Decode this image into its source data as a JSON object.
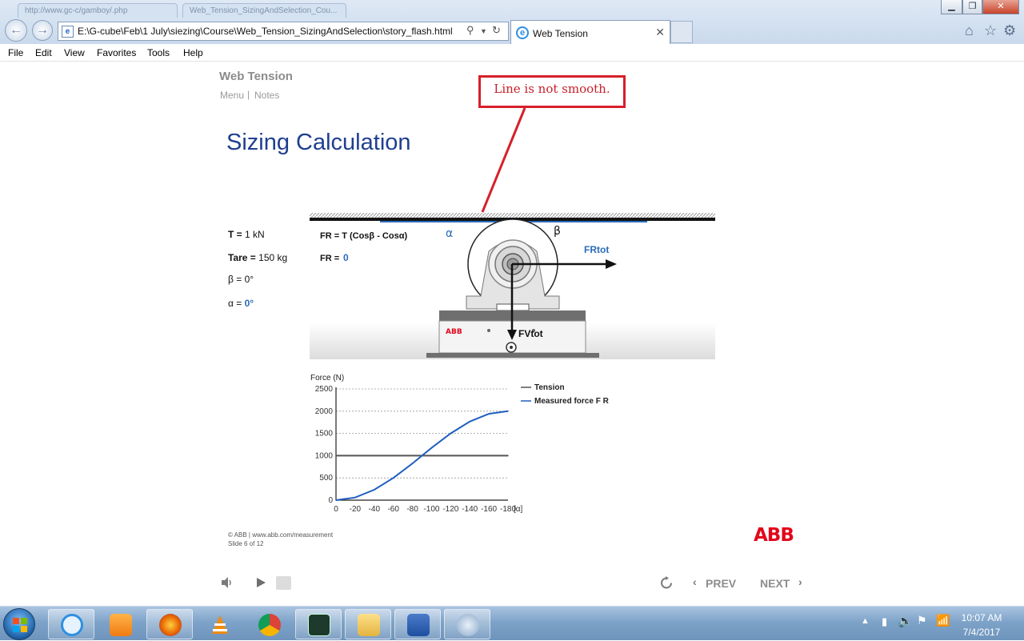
{
  "browser": {
    "background_tabs": [
      "http://www.gc-c/gamboy/.php",
      "Web_Tension_SizingAndSelection_Cou..."
    ],
    "address": "E:\\G-cube\\Feb\\1 July\\siezing\\Course\\Web_Tension_SizingAndSelection\\story_flash.html",
    "active_tab": "Web Tension",
    "menu": [
      "File",
      "Edit",
      "View",
      "Favorites",
      "Tools",
      "Help"
    ]
  },
  "course": {
    "title": "Web Tension",
    "menu_link": "Menu",
    "separator": "|",
    "notes_link": "Notes",
    "slide_title": "Sizing Calculation"
  },
  "annotation": {
    "text": "Line is not smooth.",
    "color": "#d6202a"
  },
  "params": {
    "t_label": "T =",
    "t_value": "1 kN",
    "tare_label": "Tare =",
    "tare_value": "150 kg",
    "beta_label": "β =",
    "beta_value": "0°",
    "alpha_label": "α =",
    "alpha_value": "0°"
  },
  "diagram": {
    "formula": "FR = T (Cosβ - Cosα)",
    "fr_label": "FR =",
    "fr_value": "0",
    "alpha": "α",
    "beta": "β",
    "frtot": "FRtot",
    "fvtot": "FVtot",
    "brand": "ABB"
  },
  "chart_data": {
    "type": "line",
    "ylabel": "Force (N)",
    "xlabel": "[α]",
    "x": [
      0,
      -20,
      -40,
      -60,
      -80,
      -100,
      -120,
      -140,
      -160,
      -180
    ],
    "xticks": [
      "0",
      "-20",
      "-40",
      "-60",
      "-80",
      "-100",
      "-120",
      "-140",
      "-160",
      "-180"
    ],
    "yticks": [
      "2500",
      "2000",
      "1500",
      "1000",
      "500",
      "0"
    ],
    "ylim": [
      0,
      2500
    ],
    "grid": true,
    "legend_position": "right",
    "series": [
      {
        "name": "Tension",
        "color": "#555555",
        "values": [
          1000,
          1000,
          1000,
          1000,
          1000,
          1000,
          1000,
          1000,
          1000,
          1000
        ]
      },
      {
        "name": "Measured force F R",
        "color": "#1f5fbf",
        "values": [
          0,
          60,
          234,
          500,
          826,
          1174,
          1500,
          1766,
          1940,
          2000
        ]
      }
    ]
  },
  "footer": {
    "copyright": "© ABB | www.abb.com/measurement",
    "slide": "Slide 6 of 12",
    "logo": "ABB"
  },
  "playbar": {
    "prev": "PREV",
    "next": "NEXT"
  },
  "taskbar": {
    "time": "10:07 AM",
    "date": "7/4/2017"
  },
  "colors": {
    "accent": "#1f3f8f",
    "abb_red": "#e3061b",
    "measured_blue": "#1f5fbf"
  }
}
